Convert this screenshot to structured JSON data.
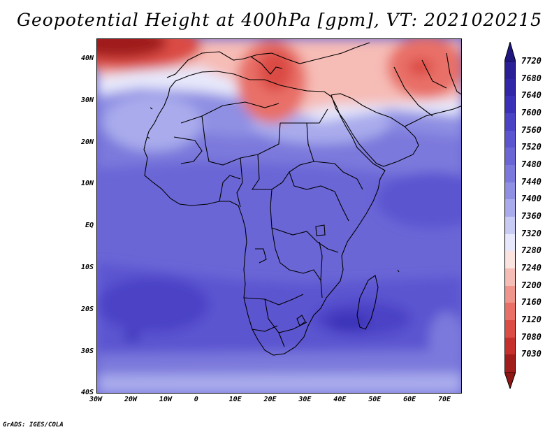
{
  "title": "Geopotential Height at 400hPa [gpm], VT: 2021020215",
  "credit": "GrADS: IGES/COLA",
  "lat_labels": [
    "40N",
    "30N",
    "20N",
    "10N",
    "EQ",
    "10S",
    "20S",
    "30S",
    "40S"
  ],
  "lon_labels": [
    "30W",
    "20W",
    "10W",
    "0",
    "10E",
    "20E",
    "30E",
    "40E",
    "50E",
    "60E",
    "70E"
  ],
  "colorbar": {
    "labels": [
      "7720",
      "7680",
      "7640",
      "7600",
      "7560",
      "7520",
      "7480",
      "7440",
      "7400",
      "7360",
      "7320",
      "7280",
      "7240",
      "7200",
      "7160",
      "7120",
      "7080",
      "7030"
    ],
    "colors": [
      "#2a1f97",
      "#3126a8",
      "#3b31b8",
      "#4b43c6",
      "#5b55d0",
      "#6a66d6",
      "#7b79dc",
      "#8f8fe3",
      "#a9abec",
      "#c8cbf4",
      "#e7e8fb",
      "#fbe3e0",
      "#f6bcb6",
      "#f0958c",
      "#e87067",
      "#db4c45",
      "#c52f2c",
      "#a01d1b"
    ],
    "top_color": "#1f177f",
    "bottom_color": "#8e1614"
  },
  "map_colors": {
    "deep_red": "#a01d1b",
    "red": "#e87067",
    "light_red": "#f6bcb6",
    "white": "#ffffff",
    "lavender": "#c8cbf4",
    "light_blue": "#a9abec",
    "mid_blue": "#7b79dc",
    "blue": "#6a66d6",
    "dark_blue": "#4b43c6"
  }
}
